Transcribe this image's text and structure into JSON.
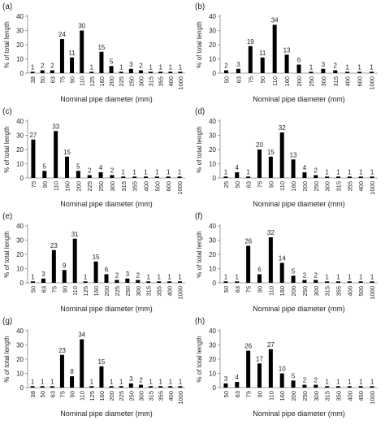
{
  "chart_data": [
    {
      "type": "bar",
      "panel_label": "(a)",
      "xlabel": "Nominal pipe diameter (mm)",
      "ylabel": "% of total length",
      "ylim": [
        0,
        40
      ],
      "yticks": [
        0,
        10,
        20,
        30,
        40
      ],
      "categories": [
        "38",
        "50",
        "63",
        "75",
        "90",
        "110",
        "125",
        "160",
        "200",
        "225",
        "250",
        "300",
        "315",
        "355",
        "400",
        "1000"
      ],
      "values": [
        1,
        2,
        2,
        24,
        11,
        30,
        1,
        15,
        5,
        1,
        3,
        2,
        1,
        1,
        1,
        1
      ],
      "data_labels": [
        "1",
        "2",
        "2",
        "24",
        "11",
        "30",
        "1",
        "15",
        "5",
        "1",
        "3",
        "2",
        "1",
        "1",
        "1",
        "1"
      ]
    },
    {
      "type": "bar",
      "panel_label": "(b)",
      "xlabel": "Nominal pipe diameter (mm)",
      "ylabel": "% of total length",
      "ylim": [
        0,
        40
      ],
      "yticks": [
        0,
        10,
        20,
        30,
        40
      ],
      "categories": [
        "50",
        "63",
        "75",
        "90",
        "110",
        "160",
        "200",
        "250",
        "300",
        "315",
        "400",
        "600",
        "1000"
      ],
      "values": [
        2,
        3,
        19,
        11,
        34,
        13,
        6,
        1,
        3,
        2,
        1,
        1,
        1
      ],
      "data_labels": [
        "2",
        "3",
        "19",
        "11",
        "34",
        "13",
        "6",
        "1",
        "3",
        "2",
        "1",
        "1",
        "1"
      ]
    },
    {
      "type": "bar",
      "panel_label": "(c)",
      "xlabel": "Nominal pipe diameter (mm)",
      "ylabel": "% of total length",
      "ylim": [
        0,
        40
      ],
      "yticks": [
        0,
        10,
        20,
        30,
        40
      ],
      "categories": [
        "75",
        "90",
        "110",
        "160",
        "200",
        "225",
        "250",
        "300",
        "315",
        "355",
        "400",
        "500",
        "600",
        "1000"
      ],
      "values": [
        27,
        5,
        33,
        15,
        5,
        2,
        4,
        2,
        1,
        1,
        1,
        1,
        1,
        1
      ],
      "data_labels": [
        "27",
        "5",
        "33",
        "15",
        "5",
        "2",
        "4",
        "2",
        "1",
        "1",
        "1",
        "1",
        "1",
        "1"
      ]
    },
    {
      "type": "bar",
      "panel_label": "(d)",
      "xlabel": "Nominal pipe diameter (mm)",
      "ylabel": "% of total length",
      "ylim": [
        0,
        40
      ],
      "yticks": [
        0,
        10,
        20,
        30,
        40
      ],
      "categories": [
        "25",
        "50",
        "63",
        "75",
        "90",
        "110",
        "160",
        "200",
        "250",
        "300",
        "315",
        "355",
        "400",
        "1000"
      ],
      "values": [
        1,
        4,
        1,
        20,
        15,
        32,
        13,
        4,
        2,
        1,
        1,
        1,
        1,
        1
      ],
      "data_labels": [
        "1",
        "4",
        "1",
        "20",
        "15",
        "32",
        "13",
        "4",
        "2",
        "1",
        "1",
        "1",
        "1",
        "1"
      ]
    },
    {
      "type": "bar",
      "panel_label": "(e)",
      "xlabel": "Nominal pipe diameter (mm)",
      "ylabel": "% of total length",
      "ylim": [
        0,
        40
      ],
      "yticks": [
        0,
        10,
        20,
        30,
        40
      ],
      "categories": [
        "50",
        "63",
        "75",
        "90",
        "110",
        "125",
        "160",
        "200",
        "225",
        "250",
        "300",
        "315",
        "355",
        "400",
        "1000"
      ],
      "values": [
        1,
        3,
        23,
        9,
        31,
        1,
        15,
        6,
        2,
        3,
        2,
        1,
        1,
        1,
        1
      ],
      "data_labels": [
        "1",
        "3",
        "23",
        "9",
        "31",
        "1",
        "15",
        "6",
        "2",
        "3",
        "2",
        "1",
        "1",
        "1",
        "1"
      ]
    },
    {
      "type": "bar",
      "panel_label": "(f)",
      "xlabel": "Nominal pipe diameter (mm)",
      "ylabel": "% of total length",
      "ylim": [
        0,
        40
      ],
      "yticks": [
        0,
        10,
        20,
        30,
        40
      ],
      "categories": [
        "50",
        "63",
        "75",
        "90",
        "110",
        "160",
        "200",
        "250",
        "300",
        "315",
        "355",
        "400",
        "500",
        "1000"
      ],
      "values": [
        1,
        1,
        26,
        6,
        32,
        14,
        5,
        2,
        2,
        1,
        1,
        1,
        1,
        1
      ],
      "data_labels": [
        "1",
        "1",
        "26",
        "6",
        "32",
        "14",
        "5",
        "2",
        "2",
        "1",
        "1",
        "1",
        "1",
        "1"
      ]
    },
    {
      "type": "bar",
      "panel_label": "(g)",
      "xlabel": "Nominal pipe diameter (mm)",
      "ylabel": "% of total length",
      "ylim": [
        0,
        40
      ],
      "yticks": [
        0,
        10,
        20,
        30,
        40
      ],
      "categories": [
        "38",
        "50",
        "63",
        "75",
        "90",
        "110",
        "125",
        "160",
        "200",
        "225",
        "250",
        "300",
        "315",
        "355",
        "400",
        "1000"
      ],
      "values": [
        1,
        1,
        1,
        23,
        8,
        34,
        1,
        15,
        1,
        1,
        3,
        2,
        1,
        1,
        1,
        1
      ],
      "data_labels": [
        "1",
        "1",
        "1",
        "23",
        "8",
        "34",
        "1",
        "15",
        "1",
        "1",
        "3",
        "2",
        "1",
        "1",
        "1",
        "1"
      ]
    },
    {
      "type": "bar",
      "panel_label": "(h)",
      "xlabel": "Nominal pipe diameter (mm)",
      "ylabel": "% of total length",
      "ylim": [
        0,
        40
      ],
      "yticks": [
        0,
        10,
        20,
        30,
        40
      ],
      "categories": [
        "50",
        "63",
        "75",
        "90",
        "110",
        "160",
        "200",
        "250",
        "300",
        "315",
        "350",
        "400",
        "450",
        "1000"
      ],
      "values": [
        3,
        4,
        26,
        17,
        27,
        10,
        5,
        2,
        2,
        1,
        1,
        1,
        1,
        1
      ],
      "data_labels": [
        "3",
        "4",
        "26",
        "17",
        "27",
        "10",
        "5",
        "2",
        "2",
        "1",
        "1",
        "1",
        "1",
        "1"
      ]
    }
  ]
}
